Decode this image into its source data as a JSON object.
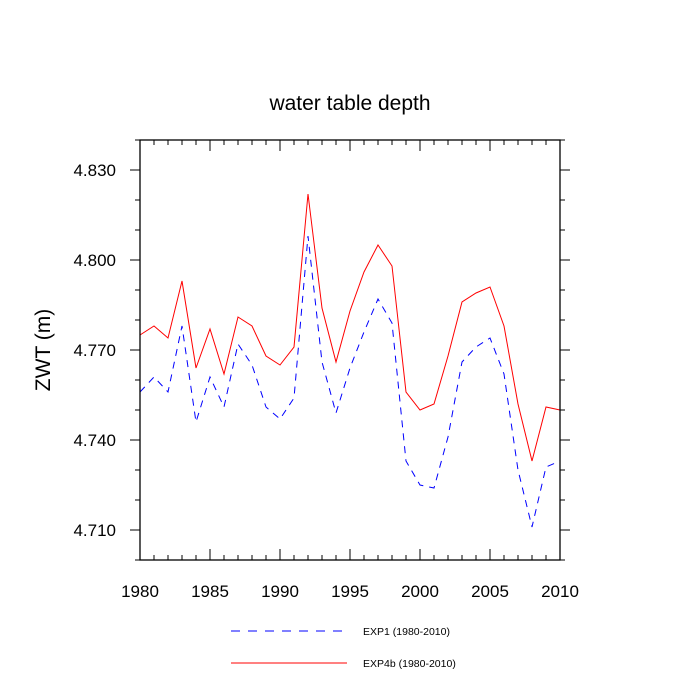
{
  "chart_data": {
    "type": "line",
    "title": "water table depth",
    "xlabel": "",
    "ylabel": "ZWT  (m)",
    "xlim": [
      1980,
      2010
    ],
    "ylim": [
      4.7,
      4.84
    ],
    "xticks": [
      1980,
      1985,
      1990,
      1995,
      2000,
      2005,
      2010
    ],
    "xtick_labels": [
      "1980",
      "1985",
      "1990",
      "1995",
      "2000",
      "2005",
      "2010"
    ],
    "yticks": [
      4.71,
      4.74,
      4.77,
      4.8,
      4.83
    ],
    "ytick_labels": [
      "4.710",
      "4.740",
      "4.770",
      "4.800",
      "4.830"
    ],
    "grid": false,
    "legend_position": "bottom",
    "x": [
      1980,
      1981,
      1982,
      1983,
      1984,
      1985,
      1986,
      1987,
      1988,
      1989,
      1990,
      1991,
      1992,
      1993,
      1994,
      1995,
      1996,
      1997,
      1998,
      1999,
      2000,
      2001,
      2002,
      2003,
      2004,
      2005,
      2006,
      2007,
      2008,
      2009,
      2010
    ],
    "series": [
      {
        "name": "EXP1 (1980-2010)",
        "color": "#0000ff",
        "style": "dashed",
        "values": [
          4.756,
          4.761,
          4.756,
          4.778,
          4.746,
          4.761,
          4.751,
          4.772,
          4.765,
          4.751,
          4.747,
          4.754,
          4.808,
          4.766,
          4.749,
          4.764,
          4.776,
          4.787,
          4.779,
          4.733,
          4.725,
          4.724,
          4.741,
          4.766,
          4.771,
          4.774,
          4.762,
          4.73,
          4.711,
          4.731,
          4.733
        ]
      },
      {
        "name": "EXP4b (1980-2010)",
        "color": "#ff0000",
        "style": "solid",
        "values": [
          4.775,
          4.778,
          4.774,
          4.793,
          4.764,
          4.777,
          4.762,
          4.781,
          4.778,
          4.768,
          4.765,
          4.771,
          4.822,
          4.784,
          4.766,
          4.783,
          4.796,
          4.805,
          4.798,
          4.756,
          4.75,
          4.752,
          4.768,
          4.786,
          4.789,
          4.791,
          4.778,
          4.752,
          4.733,
          4.751,
          4.75
        ]
      }
    ]
  }
}
